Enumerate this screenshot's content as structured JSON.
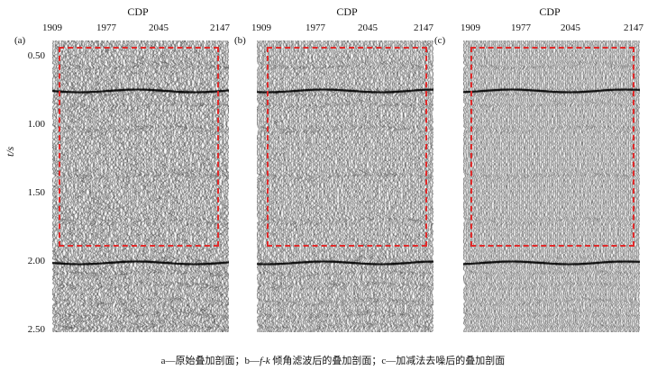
{
  "figure": {
    "cdp_label": "CDP",
    "cdp_ticks": [
      "1909",
      "1977",
      "2045",
      "2147"
    ],
    "time_axis_label": "t/s",
    "time_ticks": [
      "0.50",
      "1.00",
      "1.50",
      "2.00",
      "2.50"
    ],
    "panels": [
      {
        "label": "(a)",
        "noise_level": 1.0
      },
      {
        "label": "(b)",
        "noise_level": 0.85
      },
      {
        "label": "(c)",
        "noise_level": 0.55
      }
    ],
    "caption_parts": [
      "a—原始叠加剖面；b—",
      "f-k",
      " 倾角滤波后的叠加剖面；c—加减法去噪后的叠加剖面"
    ],
    "highlight_color": "#e02a2a"
  }
}
